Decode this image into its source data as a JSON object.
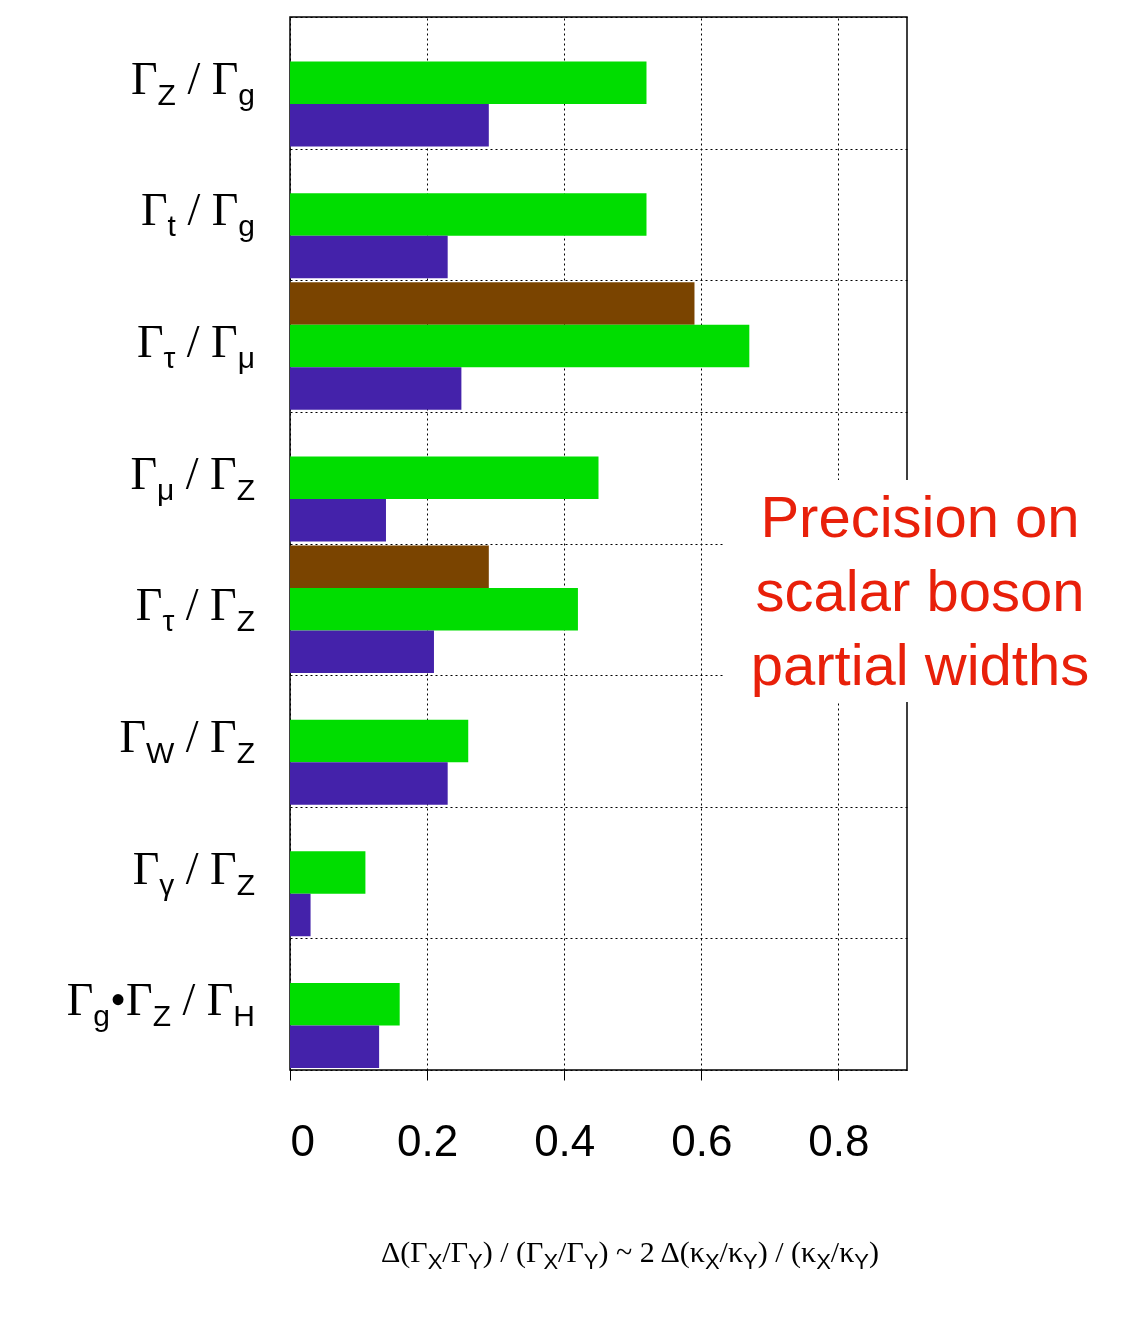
{
  "chart_data": {
    "type": "bar",
    "orientation": "horizontal",
    "categories": [
      "Γ$_{Z}$ / Γ$_{g}$",
      "Γ$_{t}$ / Γ$_{g}$",
      "Γ$_{τ}$ / Γ$_{μ}$",
      "Γ$_{μ}$ / Γ$_{Z}$",
      "Γ$_{τ}$ / Γ$_{Z}$",
      "Γ$_{W}$ / Γ$_{Z}$",
      "Γ$_{γ}$ / Γ$_{Z}$",
      "Γ$_{g}$•Γ$_{Z}$ / Γ$_{H}$"
    ],
    "series": [
      {
        "color": "#7a4400",
        "values": [
          null,
          null,
          0.59,
          null,
          0.29,
          null,
          null,
          null
        ]
      },
      {
        "color": "#00dd00",
        "values": [
          0.52,
          0.52,
          0.67,
          0.45,
          0.42,
          0.26,
          0.11,
          0.16
        ]
      },
      {
        "color": "#4422aa",
        "values": [
          0.29,
          0.23,
          0.25,
          0.14,
          0.21,
          0.23,
          0.03,
          0.13
        ]
      }
    ],
    "xlim": [
      0,
      0.9
    ],
    "xticks": [
      0,
      0.2,
      0.4,
      0.6,
      0.8
    ],
    "xlabel": "Δ(Γ$_{X}$/Γ$_{Y}$) / (Γ$_{X}$/Γ$_{Y}$) ~ 2 Δ(κ$_{X}$/κ$_{Y}$) / (κ$_{X}$/κ$_{Y}$)",
    "annotations": [
      "Precision on scalar boson partial widths"
    ],
    "grid": true
  }
}
